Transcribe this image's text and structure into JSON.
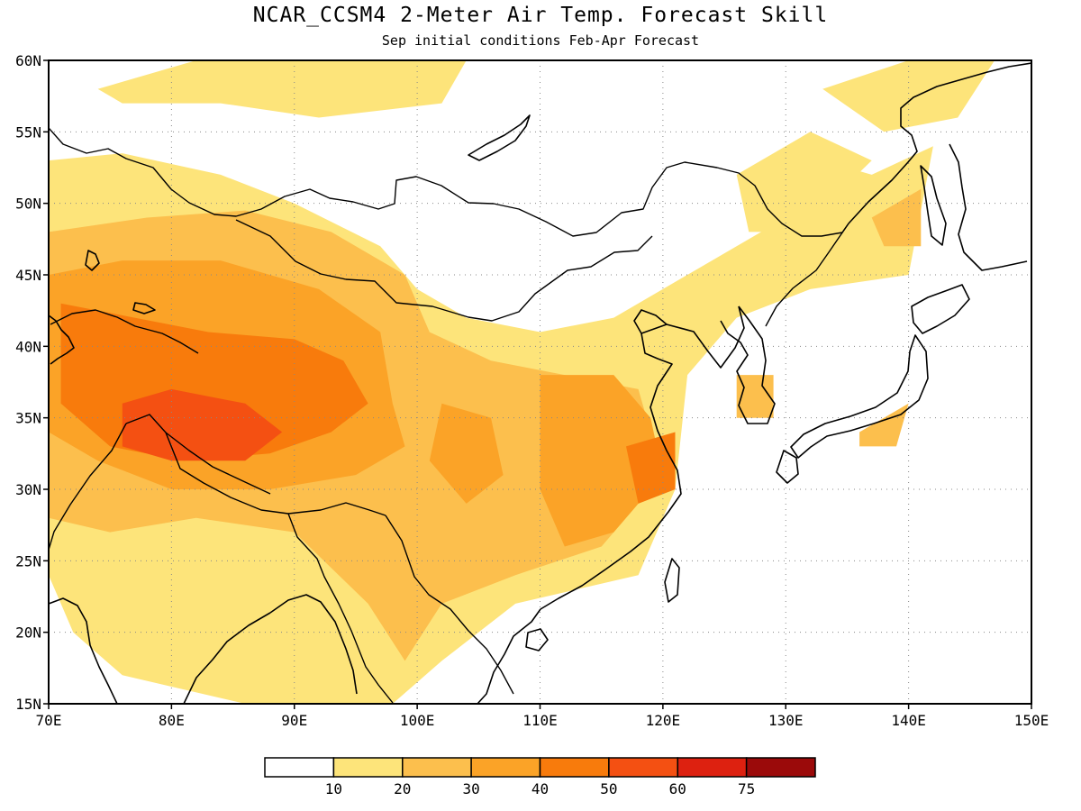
{
  "title": "NCAR_CCSM4 2-Meter Air Temp. Forecast Skill",
  "subtitle": "Sep initial conditions  Feb-Apr Forecast",
  "map": {
    "lon_range": [
      70,
      150
    ],
    "lat_range": [
      15,
      60
    ],
    "lon_ticks": [
      70,
      80,
      90,
      100,
      110,
      120,
      130,
      140,
      150
    ],
    "lon_labels": [
      "70E",
      "80E",
      "90E",
      "100E",
      "110E",
      "120E",
      "130E",
      "140E",
      "150E"
    ],
    "lat_ticks": [
      15,
      20,
      25,
      30,
      35,
      40,
      45,
      50,
      55,
      60
    ],
    "lat_labels": [
      "15N",
      "20N",
      "25N",
      "30N",
      "35N",
      "40N",
      "45N",
      "50N",
      "55N",
      "60N"
    ],
    "grid": true
  },
  "colorbar": {
    "levels": [
      "10",
      "20",
      "30",
      "40",
      "50",
      "60",
      "75"
    ],
    "colors": [
      "#ffffff",
      "#fde47a",
      "#fcbf4d",
      "#fba327",
      "#f87b0c",
      "#f45012",
      "#dd2110",
      "#9b0a0a"
    ]
  },
  "chart_data": {
    "type": "heatmap",
    "title": "NCAR_CCSM4 2-Meter Air Temp. Forecast Skill",
    "subtitle": "Sep initial conditions  Feb-Apr Forecast",
    "x_range": [
      70,
      150
    ],
    "y_range": [
      15,
      60
    ],
    "contour_levels": [
      10,
      20,
      30,
      40,
      50,
      60,
      75
    ],
    "regions": [
      {
        "level_index": 1,
        "points": [
          [
            70,
            53
          ],
          [
            76,
            53.5
          ],
          [
            84,
            52
          ],
          [
            90,
            50
          ],
          [
            97,
            47
          ],
          [
            100,
            44
          ],
          [
            104,
            42
          ],
          [
            110,
            41
          ],
          [
            116,
            42
          ],
          [
            122,
            45
          ],
          [
            128,
            48
          ],
          [
            133,
            53
          ],
          [
            137,
            52
          ],
          [
            142,
            54
          ],
          [
            140,
            45
          ],
          [
            132,
            44
          ],
          [
            126,
            42
          ],
          [
            122,
            38
          ],
          [
            121,
            30
          ],
          [
            118,
            24
          ],
          [
            108,
            22
          ],
          [
            102,
            18
          ],
          [
            98,
            15
          ],
          [
            86,
            15
          ],
          [
            76,
            17
          ],
          [
            72,
            20
          ],
          [
            70,
            24
          ]
        ]
      },
      {
        "level_index": 1,
        "points": [
          [
            74,
            58
          ],
          [
            82,
            60
          ],
          [
            104,
            60
          ],
          [
            102,
            57
          ],
          [
            92,
            56
          ],
          [
            84,
            57
          ],
          [
            76,
            57
          ]
        ]
      },
      {
        "level_index": 1,
        "points": [
          [
            133,
            58
          ],
          [
            140,
            60
          ],
          [
            147,
            60
          ],
          [
            144,
            56
          ],
          [
            138,
            55
          ]
        ]
      },
      {
        "level_index": 1,
        "points": [
          [
            126,
            52
          ],
          [
            132,
            55
          ],
          [
            137,
            53
          ],
          [
            131,
            48
          ],
          [
            127,
            48
          ]
        ]
      },
      {
        "level_index": 2,
        "points": [
          [
            70,
            48
          ],
          [
            78,
            49
          ],
          [
            86,
            49.5
          ],
          [
            93,
            48
          ],
          [
            99,
            45
          ],
          [
            101,
            41
          ],
          [
            106,
            39
          ],
          [
            112,
            38
          ],
          [
            118,
            37
          ],
          [
            120,
            31
          ],
          [
            115,
            26
          ],
          [
            108,
            24
          ],
          [
            102,
            22
          ],
          [
            99,
            18
          ],
          [
            96,
            22
          ],
          [
            90,
            27
          ],
          [
            82,
            28
          ],
          [
            75,
            27
          ],
          [
            70,
            28
          ]
        ]
      },
      {
        "level_index": 2,
        "points": [
          [
            137,
            49
          ],
          [
            141,
            51
          ],
          [
            141,
            47
          ],
          [
            138,
            47
          ]
        ]
      },
      {
        "level_index": 2,
        "points": [
          [
            126,
            38
          ],
          [
            129,
            38
          ],
          [
            129,
            35
          ],
          [
            126,
            35
          ]
        ]
      },
      {
        "level_index": 2,
        "points": [
          [
            136,
            34
          ],
          [
            140,
            36
          ],
          [
            139,
            33
          ],
          [
            136,
            33
          ]
        ]
      },
      {
        "level_index": 3,
        "points": [
          [
            70,
            45
          ],
          [
            76,
            46
          ],
          [
            84,
            46
          ],
          [
            92,
            44
          ],
          [
            97,
            41
          ],
          [
            98,
            36
          ],
          [
            99,
            33
          ],
          [
            95,
            31
          ],
          [
            88,
            30
          ],
          [
            80,
            30
          ],
          [
            74,
            32
          ],
          [
            70,
            34
          ]
        ]
      },
      {
        "level_index": 3,
        "points": [
          [
            110,
            38
          ],
          [
            116,
            38
          ],
          [
            119,
            35
          ],
          [
            120,
            31
          ],
          [
            116,
            27
          ],
          [
            112,
            26
          ],
          [
            110,
            30
          ]
        ]
      },
      {
        "level_index": 3,
        "points": [
          [
            102,
            36
          ],
          [
            106,
            35
          ],
          [
            107,
            31
          ],
          [
            104,
            29
          ],
          [
            101,
            32
          ]
        ]
      },
      {
        "level_index": 4,
        "points": [
          [
            71,
            43
          ],
          [
            77,
            42
          ],
          [
            83,
            41
          ],
          [
            90,
            40.5
          ],
          [
            94,
            39
          ],
          [
            96,
            36
          ],
          [
            93,
            34
          ],
          [
            88,
            32.5
          ],
          [
            81,
            32
          ],
          [
            75,
            33
          ],
          [
            71,
            36
          ]
        ]
      },
      {
        "level_index": 4,
        "points": [
          [
            117,
            33
          ],
          [
            121,
            34
          ],
          [
            121,
            30
          ],
          [
            118,
            29
          ]
        ]
      },
      {
        "level_index": 5,
        "points": [
          [
            76,
            36
          ],
          [
            80,
            37
          ],
          [
            86,
            36
          ],
          [
            89,
            34
          ],
          [
            86,
            32
          ],
          [
            80,
            32
          ],
          [
            76,
            33
          ]
        ]
      }
    ]
  }
}
